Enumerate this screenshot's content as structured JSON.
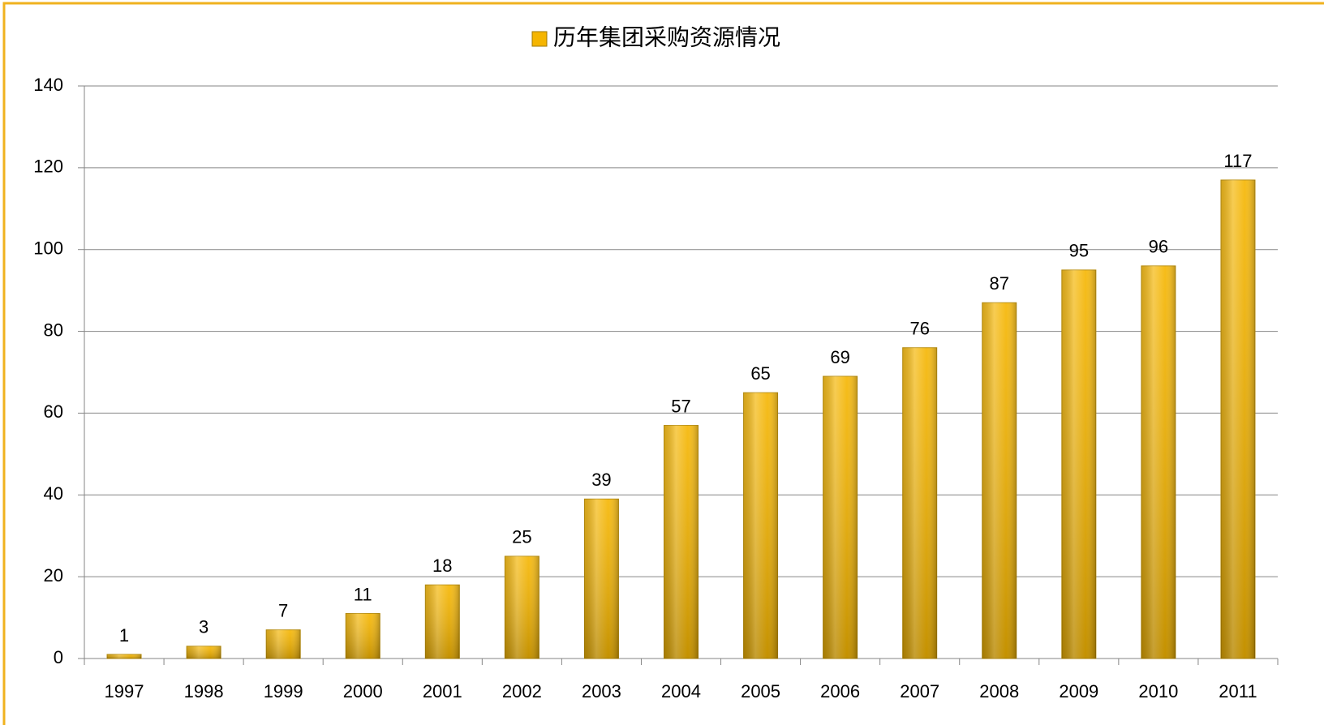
{
  "chart_data": {
    "type": "bar",
    "categories": [
      "1997",
      "1998",
      "1999",
      "2000",
      "2001",
      "2002",
      "2003",
      "2004",
      "2005",
      "2006",
      "2007",
      "2008",
      "2009",
      "2010",
      "2011"
    ],
    "series": [
      {
        "name": "历年集团采购资源情况",
        "color": "#f5b500",
        "values": [
          1,
          3,
          7,
          11,
          18,
          25,
          39,
          57,
          65,
          69,
          76,
          87,
          95,
          96,
          117
        ]
      }
    ],
    "ylim": [
      0,
      140
    ],
    "yticks": [
      0,
      20,
      40,
      60,
      80,
      100,
      120,
      140
    ],
    "grid": true,
    "legend": "top"
  }
}
